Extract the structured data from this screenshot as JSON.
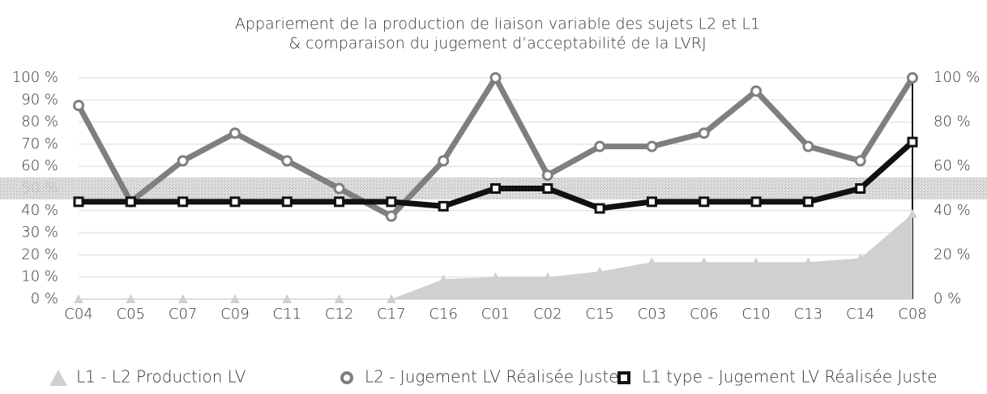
{
  "chart_data": {
    "type": "line",
    "title": "Appariement de la production de liaison variable des sujets L2 et L1",
    "subtitle": "& comparaison du jugement d’acceptabilité de la LVRJ",
    "categories": [
      "C04",
      "C05",
      "C07",
      "C09",
      "C11",
      "C12",
      "C17",
      "C16",
      "C01",
      "C02",
      "C15",
      "C03",
      "C06",
      "C10",
      "C13",
      "C14",
      "C08"
    ],
    "series": [
      {
        "name": "L1 - L2 Production LV",
        "kind": "area",
        "color": "#d0d0d0",
        "values": [
          0,
          0,
          0,
          0,
          0,
          0,
          0,
          9,
          10,
          10,
          12.5,
          16.7,
          16.7,
          16.7,
          16.7,
          18.5,
          38.5
        ]
      },
      {
        "name": "L2 - Jugement LV Réalisée Juste",
        "kind": "line",
        "color": "#7f7f7f",
        "values": [
          87.5,
          44,
          62.5,
          75,
          62.5,
          50,
          37.5,
          62.5,
          100,
          56,
          69,
          69,
          75,
          94,
          69,
          62.5,
          100
        ]
      },
      {
        "name": "L1 type - Jugement LV Réalisée Juste",
        "kind": "line",
        "color": "#111111",
        "values": [
          44,
          44,
          44,
          44,
          44,
          44,
          44,
          42,
          50,
          50,
          41,
          44,
          44,
          44,
          44,
          50,
          71
        ]
      }
    ],
    "ylim": [
      0,
      100
    ],
    "yticks": [
      {
        "value": 0,
        "label": "0 %"
      },
      {
        "value": 10,
        "label": "10 %"
      },
      {
        "value": 20,
        "label": "20 %"
      },
      {
        "value": 30,
        "label": "30 %"
      },
      {
        "value": 40,
        "label": "40 %"
      },
      {
        "value": 50,
        "label": "50 %"
      },
      {
        "value": 60,
        "label": "60 %"
      },
      {
        "value": 70,
        "label": "70 %"
      },
      {
        "value": 80,
        "label": "80 %"
      },
      {
        "value": 90,
        "label": "90 %"
      },
      {
        "value": 100,
        "label": "100 %"
      }
    ],
    "y2lim": [
      0,
      100
    ],
    "y2ticks": [
      {
        "value": 0,
        "label": "0 %"
      },
      {
        "value": 20,
        "label": "20 %"
      },
      {
        "value": 40,
        "label": "40 %"
      },
      {
        "value": 60,
        "label": "60 %"
      },
      {
        "value": 80,
        "label": "80 %"
      },
      {
        "value": 100,
        "label": "100 %"
      }
    ],
    "band": [
      45,
      55
    ],
    "grid": true,
    "legend": "bottom"
  }
}
